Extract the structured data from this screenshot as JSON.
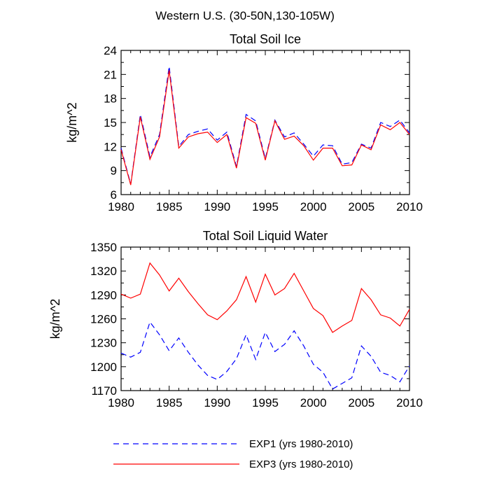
{
  "figure": {
    "title": "Western U.S. (30-50N,130-105W)"
  },
  "legend": {
    "placement": "bottom",
    "entries": [
      {
        "label": "EXP1 (yrs 1980-2010)",
        "color": "#0000ff",
        "style": "dashed"
      },
      {
        "label": "EXP3 (yrs 1980-2010)",
        "color": "#ff0000",
        "style": "solid"
      }
    ]
  },
  "chart_data": [
    {
      "type": "line",
      "title": "Total Soil Ice",
      "xlabel": "",
      "ylabel": "kg/m^2",
      "xlim": [
        1980,
        2010
      ],
      "ylim": [
        6,
        24
      ],
      "xticks": [
        1980,
        1985,
        1990,
        1995,
        2000,
        2005,
        2010
      ],
      "yticks": [
        6,
        9,
        12,
        15,
        18,
        21,
        24
      ],
      "grid": false,
      "x": [
        1980,
        1981,
        1982,
        1983,
        1984,
        1985,
        1986,
        1987,
        1988,
        1989,
        1990,
        1991,
        1992,
        1993,
        1994,
        1995,
        1996,
        1997,
        1998,
        1999,
        2000,
        2001,
        2002,
        2003,
        2004,
        2005,
        2006,
        2007,
        2008,
        2009,
        2010
      ],
      "series": [
        {
          "name": "EXP1 (yrs 1980-2010)",
          "color": "#0000ff",
          "style": "dashed",
          "values": [
            11.8,
            7.3,
            16.0,
            10.7,
            13.5,
            22.0,
            12.0,
            13.5,
            13.9,
            14.2,
            12.8,
            13.8,
            9.5,
            16.0,
            15.2,
            10.5,
            15.3,
            13.2,
            13.7,
            12.3,
            10.8,
            12.2,
            12.1,
            9.8,
            10.0,
            12.3,
            11.8,
            15.0,
            14.5,
            15.3,
            13.7
          ]
        },
        {
          "name": "EXP3 (yrs 1980-2010)",
          "color": "#ff0000",
          "style": "solid",
          "values": [
            11.6,
            7.2,
            15.7,
            10.4,
            13.2,
            21.5,
            11.8,
            13.2,
            13.6,
            13.8,
            12.5,
            13.5,
            9.3,
            15.6,
            14.9,
            10.3,
            15.2,
            12.9,
            13.3,
            12.1,
            10.3,
            11.8,
            11.8,
            9.6,
            9.7,
            12.2,
            11.6,
            14.7,
            14.1,
            15.0,
            13.5
          ]
        }
      ]
    },
    {
      "type": "line",
      "title": "Total Soil Liquid Water",
      "xlabel": "",
      "ylabel": "kg/m^2",
      "xlim": [
        1980,
        2010
      ],
      "ylim": [
        1170,
        1350
      ],
      "xticks": [
        1980,
        1985,
        1990,
        1995,
        2000,
        2005,
        2010
      ],
      "yticks": [
        1170,
        1200,
        1230,
        1260,
        1290,
        1320,
        1350
      ],
      "grid": false,
      "x": [
        1980,
        1981,
        1982,
        1983,
        1984,
        1985,
        1986,
        1987,
        1988,
        1989,
        1990,
        1991,
        1992,
        1993,
        1994,
        1995,
        1996,
        1997,
        1998,
        1999,
        2000,
        2001,
        2002,
        2003,
        2004,
        2005,
        2006,
        2007,
        2008,
        2009,
        2010
      ],
      "series": [
        {
          "name": "EXP1 (yrs 1980-2010)",
          "color": "#0000ff",
          "style": "dashed",
          "values": [
            1217,
            1212,
            1218,
            1256,
            1240,
            1220,
            1236,
            1218,
            1202,
            1189,
            1184,
            1194,
            1210,
            1240,
            1209,
            1243,
            1219,
            1228,
            1245,
            1226,
            1203,
            1193,
            1172,
            1179,
            1186,
            1226,
            1213,
            1193,
            1189,
            1181,
            1201
          ]
        },
        {
          "name": "EXP3 (yrs 1980-2010)",
          "color": "#ff0000",
          "style": "solid",
          "values": [
            1291,
            1286,
            1291,
            1330,
            1315,
            1295,
            1311,
            1294,
            1279,
            1265,
            1259,
            1270,
            1284,
            1313,
            1281,
            1316,
            1290,
            1298,
            1317,
            1295,
            1273,
            1264,
            1243,
            1251,
            1258,
            1298,
            1284,
            1265,
            1261,
            1251,
            1272
          ]
        }
      ]
    }
  ]
}
